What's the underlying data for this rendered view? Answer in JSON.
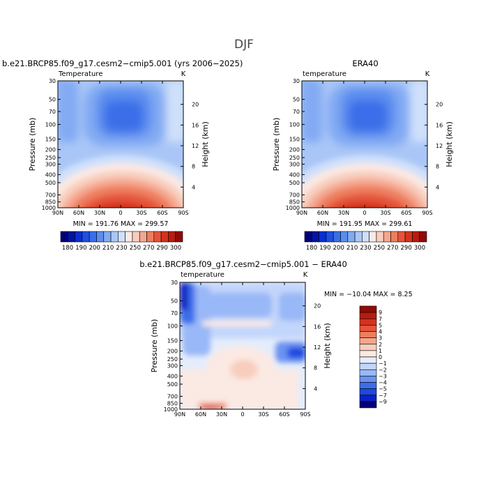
{
  "title": "DJF",
  "cmaps": {
    "abs": [
      "#00007a",
      "#0014a6",
      "#0a2ed1",
      "#1e4fe0",
      "#3a6ee8",
      "#5b8def",
      "#82aaf3",
      "#a9c6f7",
      "#cfe0fb",
      "#fbe9e3",
      "#f8cdbd",
      "#f4a78f",
      "#ee7d5e",
      "#e4543a",
      "#d3331e",
      "#b81c0e",
      "#8f0b05"
    ],
    "diff": [
      "#00007a",
      "#0a22c2",
      "#1e48e0",
      "#3d6eea",
      "#6a93f1",
      "#99b8f7",
      "#c2d6fb",
      "#e4edfc",
      "#fbe9e3",
      "#f8cdbd",
      "#f4a78f",
      "#ee7d5e",
      "#e4543a",
      "#d3331e",
      "#b81c0e",
      "#8f0b05"
    ]
  },
  "panels": [
    {
      "id": "model",
      "header": "b.e21.BRCP85.f09_g17.cesm2−cmip5.001 (yrs 2006−2025)",
      "var_label": "Temperature",
      "units": "K",
      "minmax": "MIN = 191.76   MAX = 299.57"
    },
    {
      "id": "obs",
      "header": "ERA40",
      "var_label": "temperature",
      "units": "K",
      "minmax": "MIN = 191.95   MAX = 299.61"
    },
    {
      "id": "diff",
      "header": "b.e21.BRCP85.f09_g17.cesm2−cmip5.001 − ERA40",
      "var_label": "temperature",
      "units": "K",
      "minmax": "MIN = −10.04   MAX =    8.25"
    }
  ],
  "chart_data": [
    {
      "type": "heatmap",
      "title": "b.e21.BRCP85.f09_g17.cesm2−cmip5.001 (yrs 2006−2025)",
      "subtitle": "Temperature",
      "units": "K",
      "xlabel": "",
      "ylabel": "Pressure (mb)",
      "ylabel_right": "Height (km)",
      "x_ticks": [
        "90N",
        "60N",
        "30N",
        "0",
        "30S",
        "60S",
        "90S"
      ],
      "x_values": [
        90,
        60,
        30,
        0,
        -30,
        -60,
        -90
      ],
      "y_ticks": [
        30,
        50,
        70,
        100,
        150,
        200,
        250,
        300,
        400,
        500,
        700,
        850,
        1000
      ],
      "y_scale": "log",
      "right_ticks_km": [
        20,
        16,
        12,
        8,
        4
      ],
      "min": 191.76,
      "max": 299.57,
      "colorbar_labels": [
        180,
        190,
        200,
        210,
        220,
        230,
        240,
        250,
        260,
        270,
        280,
        290,
        300
      ],
      "colorbar_printed_labels": [
        "180",
        "190",
        "200",
        "210",
        "230",
        "250",
        "270",
        "290",
        "300"
      ]
    },
    {
      "type": "heatmap",
      "title": "ERA40",
      "subtitle": "temperature",
      "units": "K",
      "xlabel": "",
      "ylabel": "Pressure (mb)",
      "ylabel_right": "Height (km)",
      "x_ticks": [
        "90N",
        "60N",
        "30N",
        "0",
        "30S",
        "60S",
        "90S"
      ],
      "x_values": [
        90,
        60,
        30,
        0,
        -30,
        -60,
        -90
      ],
      "y_ticks": [
        30,
        50,
        70,
        100,
        150,
        200,
        250,
        300,
        400,
        500,
        700,
        850,
        1000
      ],
      "y_scale": "log",
      "right_ticks_km": [
        20,
        16,
        12,
        8,
        4
      ],
      "min": 191.95,
      "max": 299.61,
      "colorbar_labels": [
        180,
        190,
        200,
        210,
        220,
        230,
        240,
        250,
        260,
        270,
        280,
        290,
        300
      ],
      "colorbar_printed_labels": [
        "180",
        "190",
        "200",
        "210",
        "230",
        "250",
        "270",
        "290",
        "300"
      ]
    },
    {
      "type": "heatmap",
      "title": "b.e21.BRCP85.f09_g17.cesm2−cmip5.001 − ERA40",
      "subtitle": "temperature",
      "units": "K",
      "xlabel": "",
      "ylabel": "Pressure (mb)",
      "ylabel_right": "Height (km)",
      "x_ticks": [
        "90N",
        "60N",
        "30N",
        "0",
        "30S",
        "60S",
        "90S"
      ],
      "x_values": [
        90,
        60,
        30,
        0,
        -30,
        -60,
        -90
      ],
      "y_ticks": [
        30,
        50,
        70,
        100,
        150,
        200,
        250,
        300,
        400,
        500,
        700,
        850,
        1000
      ],
      "y_scale": "log",
      "right_ticks_km": [
        20,
        16,
        12,
        8,
        4
      ],
      "min": -10.04,
      "max": 8.25,
      "colorbar_labels": [
        "9",
        "7",
        "5",
        "4",
        "3",
        "2",
        "1",
        "0",
        "−1",
        "−2",
        "−3",
        "−4",
        "−5",
        "−7",
        "−9"
      ]
    }
  ]
}
